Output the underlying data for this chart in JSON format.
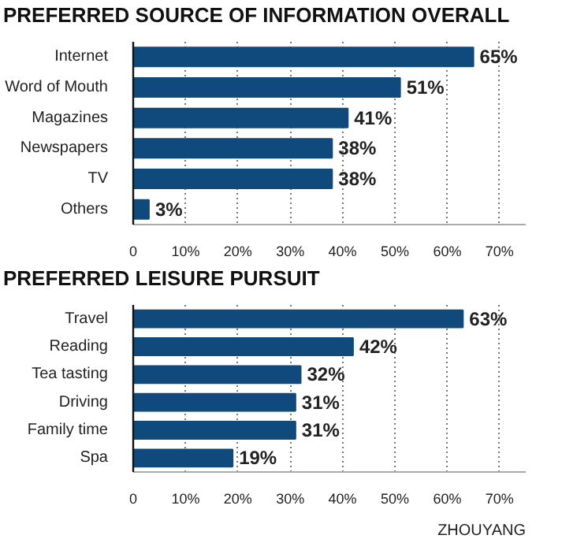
{
  "chart_data": [
    {
      "type": "bar",
      "orientation": "horizontal",
      "title": "PREFERRED SOURCE OF INFORMATION OVERALL",
      "categories": [
        "Internet",
        "Word of Mouth",
        "Magazines",
        "Newspapers",
        "TV",
        "Others"
      ],
      "values": [
        65,
        51,
        41,
        38,
        38,
        3
      ],
      "value_labels": [
        "65%",
        "51%",
        "41%",
        "38%",
        "38%",
        "3%"
      ],
      "color": "#104a7c",
      "xlim": [
        0,
        75
      ],
      "xticks": [
        0,
        {
          "value": 10,
          "label": "10%"
        },
        {
          "value": 20,
          "label": "20%"
        },
        {
          "value": 30,
          "label": "30%"
        },
        {
          "value": 40,
          "label": "40%"
        },
        {
          "value": 50,
          "label": "50%"
        },
        {
          "value": 60,
          "label": "60%"
        },
        {
          "value": 70,
          "label": "70%"
        }
      ],
      "grid": "x"
    },
    {
      "type": "bar",
      "orientation": "horizontal",
      "title": "PREFERRED LEISURE PURSUIT",
      "categories": [
        "Travel",
        "Reading",
        "Tea tasting",
        "Driving",
        "Family time",
        "Spa"
      ],
      "values": [
        63,
        42,
        32,
        31,
        31,
        19
      ],
      "value_labels": [
        "63%",
        "42%",
        "32%",
        "31%",
        "31%",
        "19%"
      ],
      "color": "#104a7c",
      "xlim": [
        0,
        75
      ],
      "xticks": [
        0,
        {
          "value": 10,
          "label": "10%"
        },
        {
          "value": 20,
          "label": "20%"
        },
        {
          "value": 30,
          "label": "30%"
        },
        {
          "value": 40,
          "label": "40%"
        },
        {
          "value": 50,
          "label": "50%"
        },
        {
          "value": 60,
          "label": "60%"
        },
        {
          "value": 70,
          "label": "70%"
        }
      ],
      "grid": "x",
      "annotations": [
        "ZHOUYANG"
      ]
    }
  ]
}
